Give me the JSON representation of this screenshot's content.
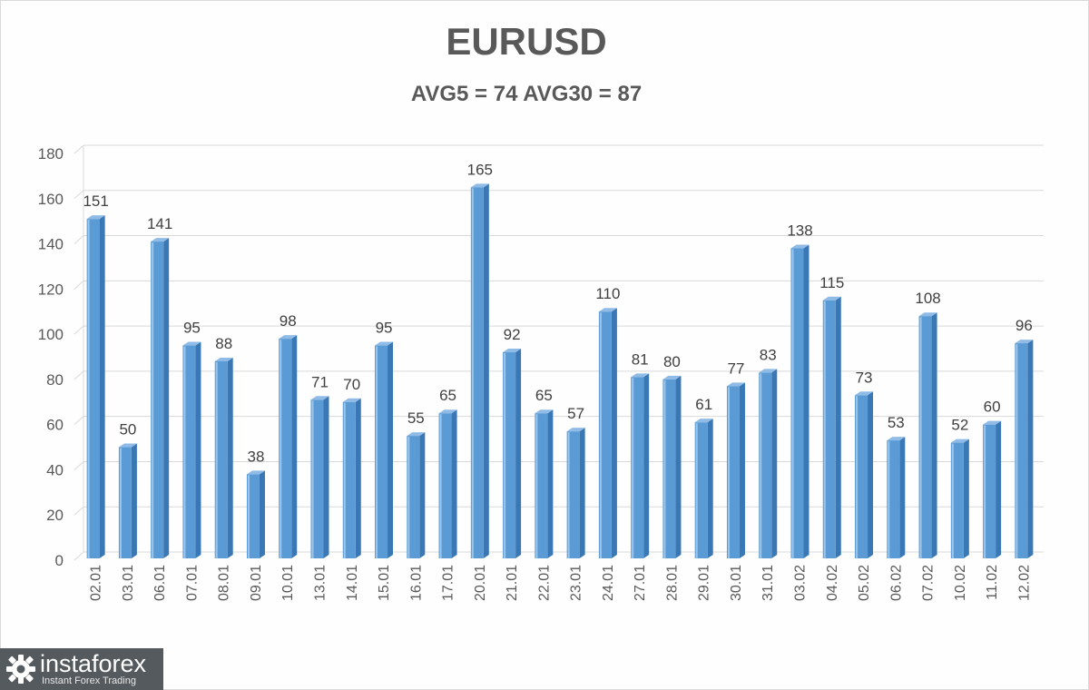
{
  "chart_data": {
    "type": "bar",
    "title": "EURUSD",
    "subtitle": "AVG5 = 74 AVG30 = 87",
    "categories": [
      "02.01",
      "03.01",
      "06.01",
      "07.01",
      "08.01",
      "09.01",
      "10.01",
      "13.01",
      "14.01",
      "15.01",
      "16.01",
      "17.01",
      "20.01",
      "21.01",
      "22.01",
      "23.01",
      "24.01",
      "27.01",
      "28.01",
      "29.01",
      "30.01",
      "31.01",
      "03.02",
      "04.02",
      "05.02",
      "06.02",
      "07.02",
      "10.02",
      "11.02",
      "12.02"
    ],
    "values": [
      151,
      50,
      141,
      95,
      88,
      38,
      98,
      71,
      70,
      95,
      55,
      65,
      165,
      92,
      65,
      57,
      110,
      81,
      80,
      61,
      77,
      83,
      138,
      115,
      73,
      53,
      108,
      52,
      60,
      96
    ],
    "ylim": [
      0,
      180
    ],
    "yticks": [
      0,
      20,
      40,
      60,
      80,
      100,
      120,
      140,
      160,
      180
    ],
    "grid": true,
    "legend": "none",
    "bar_color": "#5b9bd5",
    "bar_side_color": "#3a78b5"
  },
  "logo": {
    "name": "instaforex",
    "tagline": "Instant Forex Trading"
  }
}
